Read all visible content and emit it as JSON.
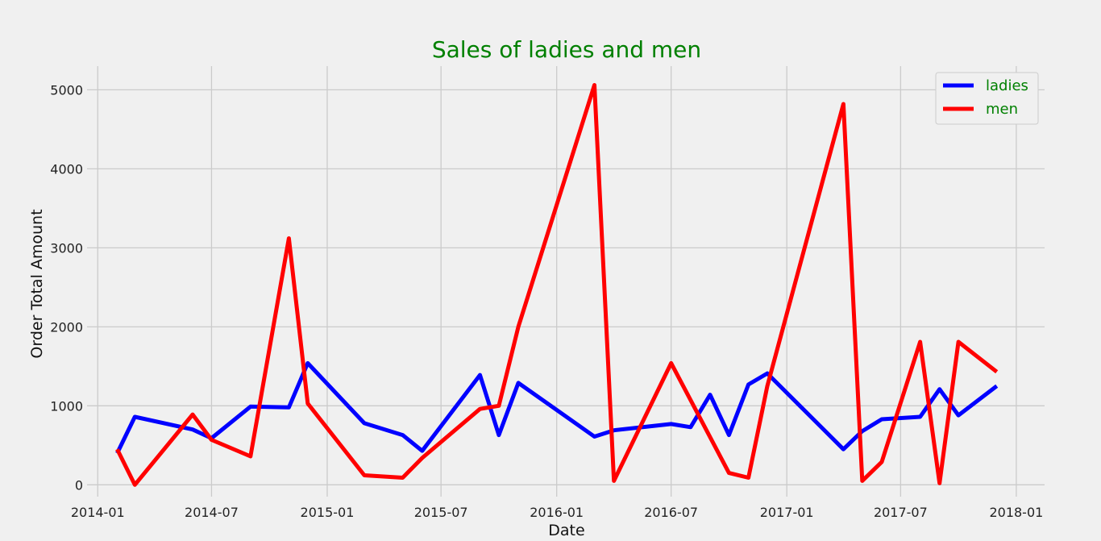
{
  "chart_data": {
    "type": "line",
    "title": "Sales of ladies and men",
    "xlabel": "Date",
    "ylabel": "Order Total Amount",
    "x_ticks": [
      "2014-01",
      "2014-07",
      "2015-01",
      "2015-07",
      "2016-01",
      "2016-07",
      "2017-01",
      "2017-07",
      "2018-01"
    ],
    "y_ticks": [
      0,
      1000,
      2000,
      3000,
      4000,
      5000
    ],
    "xlim": [
      "2013-12-15",
      "2018-02-15"
    ],
    "ylim": [
      -150,
      5300
    ],
    "grid": true,
    "legend_position": "top-right",
    "series": [
      {
        "name": "ladies",
        "color": "#0000ff",
        "points": [
          [
            "2014-02-01",
            400
          ],
          [
            "2014-03-01",
            860
          ],
          [
            "2014-06-01",
            700
          ],
          [
            "2014-07-01",
            590
          ],
          [
            "2014-09-01",
            990
          ],
          [
            "2014-11-01",
            980
          ],
          [
            "2014-12-01",
            1540
          ],
          [
            "2015-03-01",
            780
          ],
          [
            "2015-05-01",
            630
          ],
          [
            "2015-06-01",
            430
          ],
          [
            "2015-09-01",
            1390
          ],
          [
            "2015-10-01",
            630
          ],
          [
            "2015-11-01",
            1290
          ],
          [
            "2016-03-01",
            610
          ],
          [
            "2016-04-01",
            690
          ],
          [
            "2016-07-01",
            770
          ],
          [
            "2016-08-01",
            730
          ],
          [
            "2016-09-01",
            1140
          ],
          [
            "2016-10-01",
            630
          ],
          [
            "2016-11-01",
            1270
          ],
          [
            "2016-12-01",
            1410
          ],
          [
            "2017-04-01",
            450
          ],
          [
            "2017-05-01",
            680
          ],
          [
            "2017-06-01",
            830
          ],
          [
            "2017-08-01",
            860
          ],
          [
            "2017-09-01",
            1210
          ],
          [
            "2017-10-01",
            880
          ],
          [
            "2017-12-01",
            1250
          ]
        ]
      },
      {
        "name": "men",
        "color": "#ff0000",
        "points": [
          [
            "2014-02-01",
            450
          ],
          [
            "2014-03-01",
            0
          ],
          [
            "2014-06-01",
            890
          ],
          [
            "2014-07-01",
            570
          ],
          [
            "2014-09-01",
            360
          ],
          [
            "2014-11-01",
            3120
          ],
          [
            "2014-12-01",
            1030
          ],
          [
            "2015-03-01",
            120
          ],
          [
            "2015-05-01",
            90
          ],
          [
            "2015-06-01",
            340
          ],
          [
            "2015-09-01",
            960
          ],
          [
            "2015-10-01",
            1000
          ],
          [
            "2015-11-01",
            2000
          ],
          [
            "2016-03-01",
            5060
          ],
          [
            "2016-04-01",
            50
          ],
          [
            "2016-07-01",
            1540
          ],
          [
            "2016-10-01",
            150
          ],
          [
            "2016-11-01",
            90
          ],
          [
            "2016-12-01",
            1250
          ],
          [
            "2017-04-01",
            4820
          ],
          [
            "2017-05-01",
            50
          ],
          [
            "2017-06-01",
            290
          ],
          [
            "2017-08-01",
            1810
          ],
          [
            "2017-09-01",
            20
          ],
          [
            "2017-10-01",
            1810
          ],
          [
            "2017-12-01",
            1430
          ]
        ]
      }
    ]
  }
}
